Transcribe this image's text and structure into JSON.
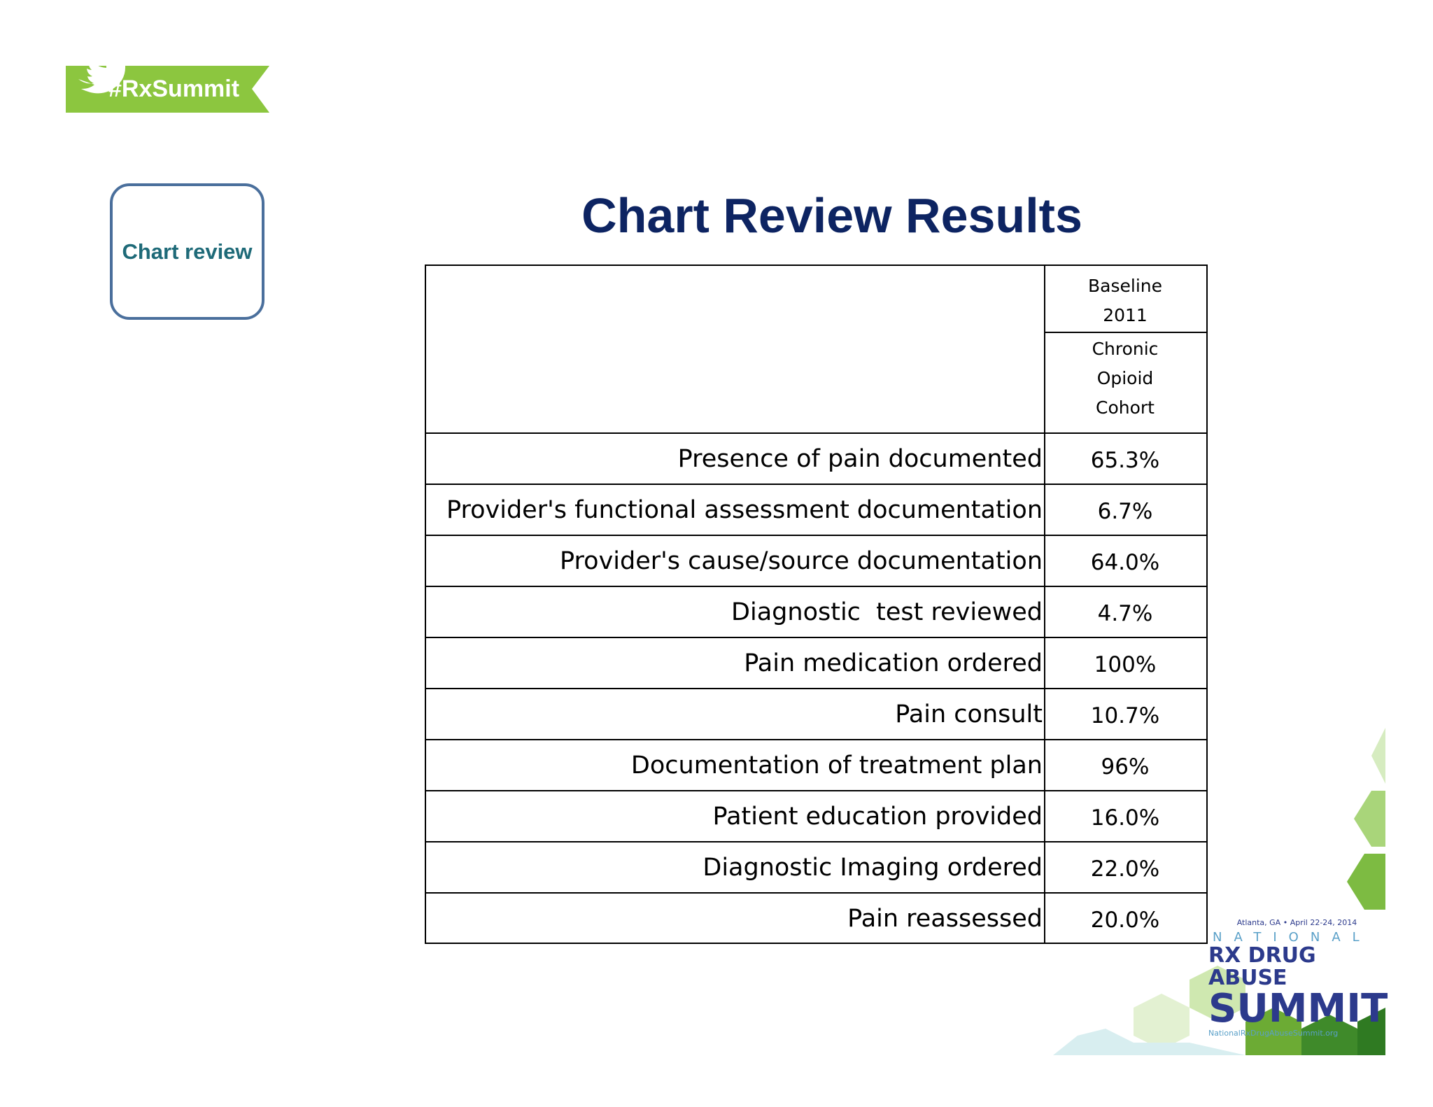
{
  "badge": {
    "text": "#RxSummit"
  },
  "sidebar": {
    "label": "Chart review"
  },
  "title": "Chart Review Results",
  "table": {
    "header": [
      "Baseline 2011",
      "Chronic Opioid Cohort"
    ],
    "rows": [
      [
        "Presence of pain documented",
        "65.3%"
      ],
      [
        "Provider's functional assessment documentation",
        "6.7%"
      ],
      [
        "Provider's cause/source documentation",
        "64.0%"
      ],
      [
        "Diagnostic  test reviewed",
        "4.7%"
      ],
      [
        "Pain medication ordered",
        "100%"
      ],
      [
        "Pain consult",
        "10.7%"
      ],
      [
        "Documentation of treatment plan",
        "96%"
      ],
      [
        "Patient education provided",
        "16.0%"
      ],
      [
        "Diagnostic Imaging ordered",
        "22.0%"
      ],
      [
        "Pain reassessed",
        "20.0%"
      ]
    ]
  },
  "logo": {
    "event": "Atlanta, GA • April 22-24, 2014",
    "line1": "NATIONAL",
    "line2": "RX DRUG ABUSE",
    "line3": "SUMMIT",
    "url": "NationalRxDrugAbuseSummit.org"
  }
}
